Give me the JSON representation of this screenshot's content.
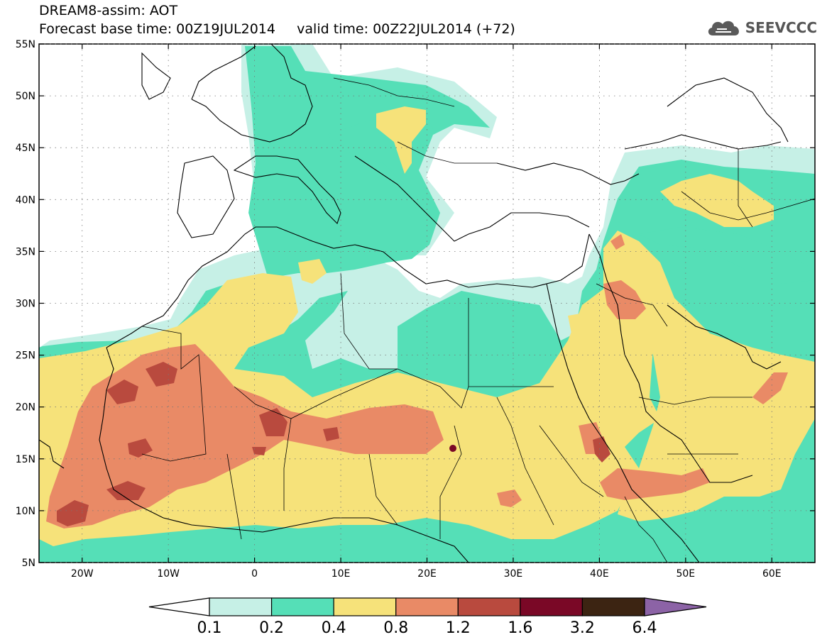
{
  "header": {
    "title": "DREAM8-assim: AOT",
    "subtitle": "Forecast base time: 00Z19JUL2014     valid time: 00Z22JUL2014 (+72)"
  },
  "logo": {
    "text": "SEEVCCC",
    "icon": "cloud-icon"
  },
  "map": {
    "lon_range": [
      -25,
      65
    ],
    "lat_range": [
      5,
      55
    ],
    "lon_ticks": [
      {
        "value": -20,
        "label": "20W"
      },
      {
        "value": -10,
        "label": "10W"
      },
      {
        "value": 0,
        "label": "0"
      },
      {
        "value": 10,
        "label": "10E"
      },
      {
        "value": 20,
        "label": "20E"
      },
      {
        "value": 30,
        "label": "30E"
      },
      {
        "value": 40,
        "label": "40E"
      },
      {
        "value": 50,
        "label": "50E"
      },
      {
        "value": 60,
        "label": "60E"
      }
    ],
    "lat_ticks": [
      {
        "value": 55,
        "label": "55N"
      },
      {
        "value": 50,
        "label": "50N"
      },
      {
        "value": 45,
        "label": "45N"
      },
      {
        "value": 40,
        "label": "40N"
      },
      {
        "value": 35,
        "label": "35N"
      },
      {
        "value": 30,
        "label": "30N"
      },
      {
        "value": 25,
        "label": "25N"
      },
      {
        "value": 20,
        "label": "20N"
      },
      {
        "value": 15,
        "label": "15N"
      },
      {
        "value": 10,
        "label": "10N"
      },
      {
        "value": 5,
        "label": "5N"
      }
    ],
    "grid": "dotted"
  },
  "colorbar": {
    "levels": [
      "0.1",
      "0.2",
      "0.4",
      "0.8",
      "1.2",
      "1.6",
      "3.2",
      "6.4"
    ],
    "colors": [
      "#ffffff",
      "#c6f0e6",
      "#55dfb7",
      "#f6e27a",
      "#e98a66",
      "#b94a3e",
      "#7a0826",
      "#3c2412",
      "#8c63a6"
    ]
  },
  "colors": {
    "aot_0_1": "#c6f0e6",
    "aot_0_2": "#55dfb7",
    "aot_0_4": "#f6e27a",
    "aot_0_8": "#e98a66",
    "aot_1_2": "#b94a3e",
    "aot_1_6": "#7a0826",
    "aot_3_2": "#3c2412",
    "aot_6_4": "#8c63a6"
  }
}
